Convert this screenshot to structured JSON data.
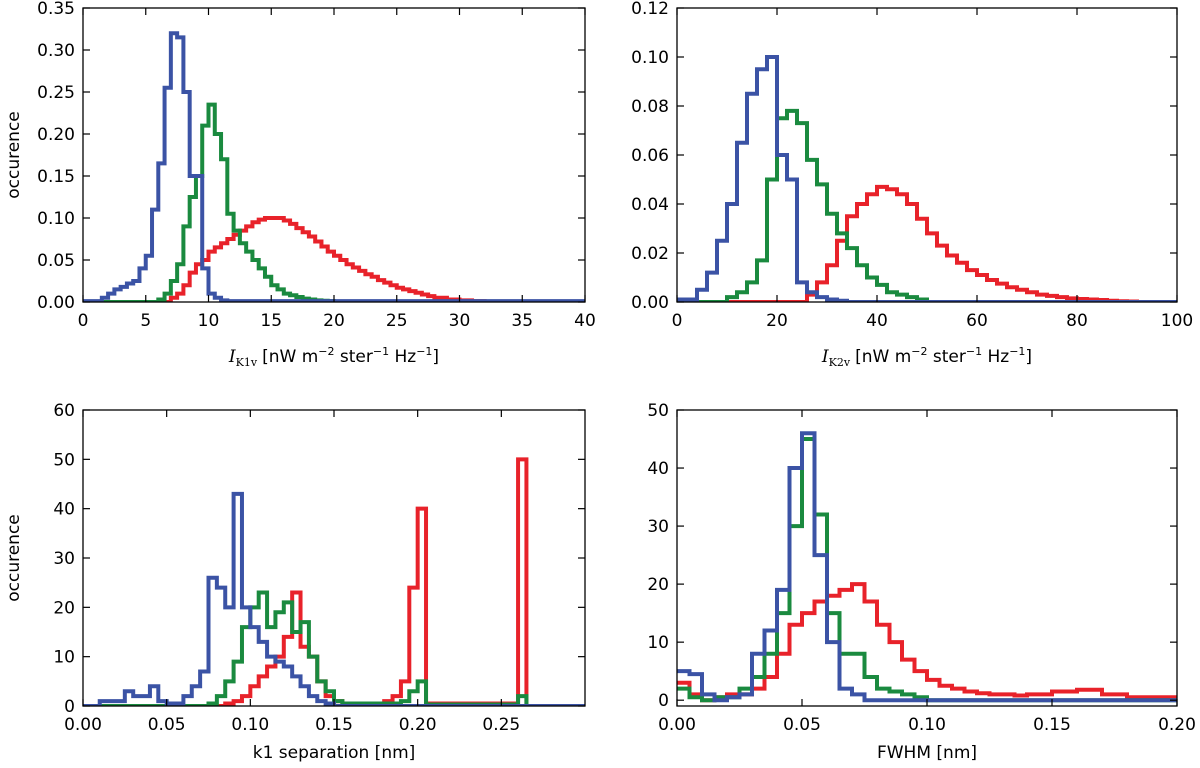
{
  "colors": {
    "red": "#e8222a",
    "green": "#1a8a3f",
    "blue": "#3b53a5"
  },
  "chart_data": [
    {
      "type": "histogram",
      "title": "",
      "xlabel": "I_K1v [nW m^-2 ster^-1 Hz^-1]",
      "xlabel_symbol": "I",
      "xlabel_sub": "K1v",
      "xlabel_unit": "[nW m",
      "xlabel_exp1": "−2",
      "xlabel_mid": " ster",
      "xlabel_exp2": "−1",
      "xlabel_mid2": " Hz",
      "xlabel_exp3": "−1",
      "xlabel_end": "]",
      "ylabel": "occurence",
      "xlim": [
        0,
        40
      ],
      "ylim": [
        0,
        0.35
      ],
      "xticks": [
        0,
        5,
        10,
        15,
        20,
        25,
        30,
        35,
        40
      ],
      "xtick_labels": [
        "0",
        "5",
        "10",
        "15",
        "20",
        "25",
        "30",
        "35",
        "40"
      ],
      "yticks": [
        0,
        0.05,
        0.1,
        0.15,
        0.2,
        0.25,
        0.3,
        0.35
      ],
      "ytick_labels": [
        "0.00",
        "0.05",
        "0.10",
        "0.15",
        "0.20",
        "0.25",
        "0.30",
        "0.35"
      ],
      "series": [
        {
          "name": "red",
          "color": "#e8222a",
          "edges": [
            0,
            7,
            7.5,
            8,
            8.5,
            9,
            9.5,
            10,
            10.5,
            11,
            11.5,
            12,
            12.5,
            13,
            13.5,
            14,
            14.5,
            15,
            15.5,
            16,
            16.5,
            17,
            17.5,
            18,
            18.5,
            19,
            19.5,
            20,
            20.5,
            21,
            21.5,
            22,
            22.5,
            23,
            23.5,
            24,
            24.5,
            25,
            25.5,
            26,
            26.5,
            27,
            27.5,
            28,
            29,
            30,
            31,
            32,
            33,
            40
          ],
          "values": [
            0,
            0.005,
            0.01,
            0.02,
            0.035,
            0.045,
            0.05,
            0.06,
            0.065,
            0.07,
            0.075,
            0.08,
            0.085,
            0.09,
            0.095,
            0.098,
            0.1,
            0.1,
            0.1,
            0.097,
            0.093,
            0.088,
            0.083,
            0.078,
            0.072,
            0.066,
            0.06,
            0.055,
            0.05,
            0.045,
            0.041,
            0.037,
            0.033,
            0.03,
            0.026,
            0.023,
            0.02,
            0.017,
            0.015,
            0.013,
            0.011,
            0.009,
            0.007,
            0.005,
            0.003,
            0.002,
            0.001,
            0.0005,
            0
          ]
        },
        {
          "name": "green",
          "color": "#1a8a3f",
          "edges": [
            0,
            6,
            6.5,
            7,
            7.5,
            8,
            8.5,
            9,
            9.5,
            10,
            10.5,
            11,
            11.5,
            12,
            12.5,
            13,
            13.5,
            14,
            14.5,
            15,
            15.5,
            16,
            16.5,
            17,
            17.5,
            18,
            18.5,
            19,
            19.5,
            20,
            21,
            22,
            40
          ],
          "values": [
            0,
            0.003,
            0.01,
            0.025,
            0.045,
            0.09,
            0.125,
            0.15,
            0.21,
            0.235,
            0.2,
            0.17,
            0.105,
            0.085,
            0.07,
            0.06,
            0.05,
            0.04,
            0.03,
            0.02,
            0.015,
            0.01,
            0.008,
            0.006,
            0.004,
            0.003,
            0.002,
            0.0015,
            0.001,
            0.0005,
            0.0002,
            0
          ]
        },
        {
          "name": "blue",
          "color": "#3b53a5",
          "edges": [
            0,
            1.5,
            2,
            2.5,
            3,
            3.5,
            4,
            4.5,
            5,
            5.5,
            6,
            6.5,
            7,
            7.5,
            8,
            8.5,
            9,
            9.5,
            10,
            10.5,
            11,
            11.5,
            40
          ],
          "values": [
            0.001,
            0.005,
            0.01,
            0.015,
            0.018,
            0.022,
            0.025,
            0.04,
            0.055,
            0.11,
            0.165,
            0.255,
            0.32,
            0.315,
            0.25,
            0.15,
            0.15,
            0.04,
            0.01,
            0.005,
            0.002,
            0.001
          ]
        }
      ]
    },
    {
      "type": "histogram",
      "title": "",
      "xlabel": "I_K2v [nW m^-2 ster^-1 Hz^-1]",
      "xlabel_symbol": "I",
      "xlabel_sub": "K2v",
      "xlabel_unit": "[nW m",
      "xlabel_exp1": "−2",
      "xlabel_mid": " ster",
      "xlabel_exp2": "−1",
      "xlabel_mid2": " Hz",
      "xlabel_exp3": "−1",
      "xlabel_end": "]",
      "ylabel": "",
      "xlim": [
        0,
        100
      ],
      "ylim": [
        0,
        0.12
      ],
      "xticks": [
        0,
        20,
        40,
        60,
        80,
        100
      ],
      "xtick_labels": [
        "0",
        "20",
        "40",
        "60",
        "80",
        "100"
      ],
      "yticks": [
        0,
        0.02,
        0.04,
        0.06,
        0.08,
        0.1,
        0.12
      ],
      "ytick_labels": [
        "0.00",
        "0.02",
        "0.04",
        "0.06",
        "0.08",
        "0.10",
        "0.12"
      ],
      "series": [
        {
          "name": "red",
          "color": "#e8222a",
          "edges": [
            0,
            26,
            28,
            30,
            32,
            34,
            36,
            38,
            40,
            42,
            44,
            46,
            48,
            50,
            52,
            54,
            56,
            58,
            60,
            62,
            64,
            66,
            68,
            70,
            72,
            74,
            76,
            78,
            80,
            82,
            84,
            86,
            88,
            90,
            92,
            100
          ],
          "values": [
            0,
            0.003,
            0.008,
            0.015,
            0.025,
            0.035,
            0.04,
            0.044,
            0.047,
            0.046,
            0.044,
            0.04,
            0.034,
            0.028,
            0.023,
            0.019,
            0.016,
            0.013,
            0.011,
            0.009,
            0.0075,
            0.006,
            0.005,
            0.004,
            0.003,
            0.0025,
            0.002,
            0.0015,
            0.0012,
            0.001,
            0.0008,
            0.0005,
            0.0003,
            0.0002,
            0
          ]
        },
        {
          "name": "green",
          "color": "#1a8a3f",
          "edges": [
            0,
            10,
            12,
            14,
            16,
            18,
            20,
            22,
            24,
            26,
            28,
            30,
            32,
            34,
            36,
            38,
            40,
            42,
            44,
            46,
            48,
            50,
            100
          ],
          "values": [
            0,
            0.002,
            0.004,
            0.008,
            0.017,
            0.05,
            0.075,
            0.078,
            0.073,
            0.058,
            0.048,
            0.036,
            0.028,
            0.022,
            0.015,
            0.01,
            0.007,
            0.004,
            0.003,
            0.002,
            0.001,
            0
          ]
        },
        {
          "name": "blue",
          "color": "#3b53a5",
          "edges": [
            0,
            4,
            6,
            8,
            10,
            12,
            14,
            16,
            18,
            20,
            22,
            24,
            26,
            28,
            30,
            32,
            34,
            100
          ],
          "values": [
            0.001,
            0.005,
            0.012,
            0.025,
            0.04,
            0.065,
            0.085,
            0.095,
            0.1,
            0.06,
            0.05,
            0.008,
            0.004,
            0.002,
            0.001,
            0.0005,
            0
          ]
        }
      ]
    },
    {
      "type": "histogram",
      "title": "",
      "xlabel": "k1 separation [nm]",
      "ylabel": "occurence",
      "xlim": [
        0,
        0.3
      ],
      "ylim": [
        0,
        60
      ],
      "xticks": [
        0,
        0.05,
        0.1,
        0.15,
        0.2,
        0.25
      ],
      "xtick_labels": [
        "0.00",
        "0.05",
        "0.10",
        "0.15",
        "0.20",
        "0.25"
      ],
      "yticks": [
        0,
        10,
        20,
        30,
        40,
        50,
        60
      ],
      "ytick_labels": [
        "0",
        "10",
        "20",
        "30",
        "40",
        "50",
        "60"
      ],
      "series": [
        {
          "name": "red",
          "color": "#e8222a",
          "edges": [
            0,
            0.085,
            0.09,
            0.095,
            0.1,
            0.105,
            0.11,
            0.115,
            0.12,
            0.125,
            0.13,
            0.135,
            0.14,
            0.145,
            0.15,
            0.155,
            0.16,
            0.165,
            0.17,
            0.175,
            0.18,
            0.185,
            0.19,
            0.195,
            0.2,
            0.205,
            0.26,
            0.265,
            0.3
          ],
          "values": [
            0,
            0.5,
            1,
            2,
            4,
            6,
            8,
            10,
            14,
            23,
            12,
            10,
            5,
            2,
            1,
            0.5,
            0.5,
            0.5,
            0.5,
            0.5,
            1,
            2,
            5,
            24,
            40,
            0.5,
            50,
            0
          ]
        },
        {
          "name": "green",
          "color": "#1a8a3f",
          "edges": [
            0,
            0.075,
            0.08,
            0.085,
            0.09,
            0.095,
            0.1,
            0.105,
            0.11,
            0.115,
            0.12,
            0.125,
            0.13,
            0.135,
            0.14,
            0.145,
            0.15,
            0.155,
            0.16,
            0.165,
            0.17,
            0.175,
            0.18,
            0.185,
            0.19,
            0.195,
            0.2,
            0.205,
            0.26,
            0.265,
            0.3
          ],
          "values": [
            0,
            0.5,
            2,
            5,
            9,
            16,
            20,
            23,
            16,
            19,
            21,
            15,
            17,
            10,
            5,
            3,
            1,
            0.5,
            0.5,
            0.5,
            0.5,
            0.5,
            0.5,
            0.5,
            1,
            3,
            5,
            0.3,
            2,
            0
          ]
        },
        {
          "name": "blue",
          "color": "#3b53a5",
          "edges": [
            0,
            0.01,
            0.015,
            0.02,
            0.025,
            0.03,
            0.035,
            0.04,
            0.045,
            0.05,
            0.055,
            0.06,
            0.065,
            0.07,
            0.075,
            0.08,
            0.085,
            0.09,
            0.095,
            0.1,
            0.105,
            0.11,
            0.115,
            0.12,
            0.125,
            0.13,
            0.135,
            0.14,
            0.145,
            0.15,
            0.3
          ],
          "values": [
            0,
            1,
            1,
            1,
            3,
            2,
            2,
            4,
            1,
            0.5,
            0.5,
            2,
            4,
            7,
            26,
            24,
            20,
            43,
            20,
            16,
            13,
            10,
            9,
            8,
            6,
            4,
            2,
            1,
            0.5,
            0
          ]
        }
      ]
    },
    {
      "type": "histogram",
      "title": "",
      "xlabel": "FWHM [nm]",
      "ylabel": "",
      "xlim": [
        0,
        0.2
      ],
      "ylim": [
        -1,
        50
      ],
      "xticks": [
        0,
        0.05,
        0.1,
        0.15,
        0.2
      ],
      "xtick_labels": [
        "0.00",
        "0.05",
        "0.10",
        "0.15",
        "0.20"
      ],
      "yticks": [
        0,
        10,
        20,
        30,
        40,
        50
      ],
      "ytick_labels": [
        "0",
        "10",
        "20",
        "30",
        "40",
        "50"
      ],
      "series": [
        {
          "name": "red",
          "color": "#e8222a",
          "edges": [
            0,
            0.005,
            0.01,
            0.015,
            0.02,
            0.025,
            0.03,
            0.035,
            0.04,
            0.045,
            0.05,
            0.055,
            0.06,
            0.065,
            0.07,
            0.075,
            0.08,
            0.085,
            0.09,
            0.095,
            0.1,
            0.105,
            0.11,
            0.115,
            0.12,
            0.125,
            0.13,
            0.135,
            0.14,
            0.15,
            0.16,
            0.17,
            0.18,
            0.2
          ],
          "values": [
            3,
            1,
            0,
            0.5,
            1,
            1,
            2,
            4,
            8,
            13,
            15,
            17,
            18,
            19,
            20,
            17,
            13,
            10,
            7,
            5,
            3.5,
            2.5,
            2,
            1.5,
            1.2,
            1,
            1,
            0.8,
            1,
            1.5,
            1.8,
            1,
            0.5
          ]
        },
        {
          "name": "green",
          "color": "#1a8a3f",
          "edges": [
            0,
            0.005,
            0.01,
            0.015,
            0.02,
            0.025,
            0.03,
            0.035,
            0.04,
            0.045,
            0.05,
            0.055,
            0.06,
            0.065,
            0.07,
            0.075,
            0.08,
            0.085,
            0.09,
            0.095,
            0.1,
            0.2
          ],
          "values": [
            2,
            0.5,
            0,
            0.5,
            0.5,
            2,
            4,
            8,
            15,
            30,
            45,
            32,
            15,
            8,
            8,
            4,
            2,
            1.5,
            1,
            0.5,
            0
          ]
        },
        {
          "name": "blue",
          "color": "#3b53a5",
          "edges": [
            0,
            0.005,
            0.01,
            0.015,
            0.02,
            0.025,
            0.03,
            0.035,
            0.04,
            0.045,
            0.05,
            0.055,
            0.06,
            0.065,
            0.07,
            0.075,
            0.2
          ],
          "values": [
            5,
            4.5,
            1,
            0,
            0.5,
            1,
            8,
            12,
            19,
            40,
            46,
            25,
            10,
            2,
            1,
            0
          ]
        }
      ]
    }
  ]
}
